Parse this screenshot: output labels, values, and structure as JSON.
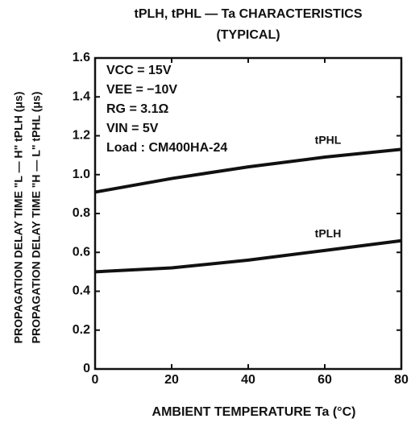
{
  "chart_data": {
    "type": "line",
    "title": "tPLH, tPHL — Ta CHARACTERISTICS",
    "subtitle": "(TYPICAL)",
    "y_label": [
      "PROPAGATION DELAY TIME \"L — H\"   tPLH (μs)",
      "PROPAGATION DELAY TIME \"H — L\"   tPHL (μs)"
    ],
    "x_label": "AMBIENT TEMPERATURE    Ta (°C)",
    "annotations": [
      "VCC = 15V",
      "VEE = −10V",
      "RG = 3.1Ω",
      "VIN = 5V",
      "Load : CM400HA-24"
    ],
    "x": [
      0,
      20,
      40,
      60,
      80
    ],
    "series": [
      {
        "name": "tPHL",
        "color": "#111111",
        "values": [
          0.91,
          0.98,
          1.04,
          1.09,
          1.13
        ]
      },
      {
        "name": "tPLH",
        "color": "#111111",
        "values": [
          0.5,
          0.52,
          0.56,
          0.61,
          0.66
        ]
      }
    ],
    "xlim": [
      0,
      80
    ],
    "xticks": [
      0,
      20,
      40,
      60,
      80
    ],
    "ylim": [
      0,
      1.6
    ],
    "yticks": [
      0,
      0.2,
      0.4,
      0.6,
      0.8,
      {
        "value": 1,
        "label": "1.0"
      },
      1.2,
      1.4,
      1.6
    ],
    "grid": false
  }
}
